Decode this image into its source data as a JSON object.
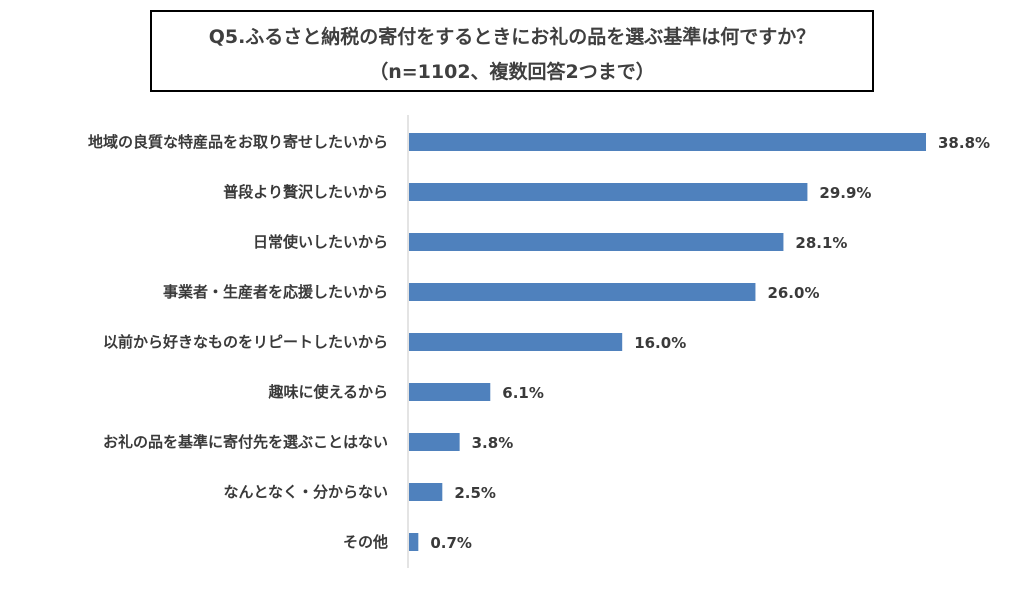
{
  "chart_data": {
    "type": "bar",
    "orientation": "horizontal",
    "title": "Q5.ふるさと納税の寄付をするときにお礼の品を選ぶ基準は何ですか？",
    "subtitle": "（n=1102、複数回答2つまで）",
    "categories": [
      "地域の良質な特産品をお取り寄せしたいから",
      "普段より贅沢したいから",
      "日常使いしたいから",
      "事業者・生産者を応援したいから",
      "以前から好きなものをリピートしたいから",
      "趣味に使えるから",
      "お礼の品を基準に寄付先を選ぶことはない",
      "なんとなく・分からない",
      "その他"
    ],
    "values": [
      38.8,
      29.9,
      28.1,
      26.0,
      16.0,
      6.1,
      3.8,
      2.5,
      0.7
    ],
    "value_labels": [
      "38.8%",
      "29.9%",
      "28.1%",
      "26.0%",
      "16.0%",
      "6.1%",
      "3.8%",
      "2.5%",
      "0.7%"
    ],
    "xlim": [
      0,
      40
    ],
    "bar_color": "#4f81bd",
    "grid": false,
    "legend": "none"
  }
}
